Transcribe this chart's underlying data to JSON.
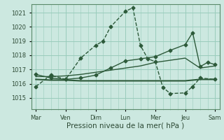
{
  "background_color": "#cce8e0",
  "grid_color": "#99ccbb",
  "line_color": "#2d5a3a",
  "x_major_labels": [
    "Mar",
    "Ven",
    "Dim",
    "Lun",
    "Mer",
    "Jeu",
    "Sam"
  ],
  "x_major_pos": [
    0,
    1,
    2,
    3,
    4,
    5,
    6
  ],
  "ylim": [
    1014.2,
    1021.6
  ],
  "yticks": [
    1015,
    1016,
    1017,
    1018,
    1019,
    1020,
    1021
  ],
  "xlabel": "Pression niveau de la mer( hPa )",
  "series": [
    {
      "x": [
        0.0,
        0.5,
        1.0,
        1.5,
        2.0,
        2.25,
        2.5,
        3.0,
        3.25,
        3.5,
        3.75,
        4.0,
        4.25,
        4.5,
        5.0,
        5.25,
        5.5,
        6.0
      ],
      "y": [
        1015.8,
        1016.6,
        1016.3,
        1017.8,
        1018.7,
        1019.0,
        1020.0,
        1021.1,
        1021.35,
        1018.7,
        1017.75,
        1017.55,
        1015.75,
        1015.3,
        1015.35,
        1015.8,
        1016.4,
        1016.3
      ],
      "linewidth": 1.0,
      "markersize": 2.5,
      "marker": "D",
      "linestyle": "--"
    },
    {
      "x": [
        0.0,
        0.5,
        1.0,
        1.5,
        2.0,
        2.5,
        3.0,
        3.5,
        4.0,
        4.5,
        5.0,
        5.5,
        6.0
      ],
      "y": [
        1016.3,
        1016.25,
        1016.25,
        1016.2,
        1016.2,
        1016.2,
        1016.2,
        1016.2,
        1016.2,
        1016.2,
        1016.2,
        1016.3,
        1016.3
      ],
      "linewidth": 1.5,
      "markersize": 0,
      "marker": "",
      "linestyle": "-"
    },
    {
      "x": [
        0.0,
        0.5,
        1.0,
        1.5,
        2.0,
        2.5,
        3.0,
        3.5,
        4.0,
        4.5,
        5.0,
        5.5,
        6.0
      ],
      "y": [
        1016.5,
        1016.5,
        1016.55,
        1016.65,
        1016.8,
        1016.95,
        1017.1,
        1017.25,
        1017.5,
        1017.65,
        1017.8,
        1017.1,
        1017.25
      ],
      "linewidth": 1.0,
      "markersize": 0,
      "marker": "",
      "linestyle": "-"
    },
    {
      "x": [
        0.0,
        0.5,
        1.0,
        1.5,
        2.0,
        2.5,
        3.0,
        3.5,
        4.0,
        4.5,
        5.0,
        5.25,
        5.5,
        5.75,
        6.0
      ],
      "y": [
        1016.65,
        1016.4,
        1016.3,
        1016.4,
        1016.6,
        1017.1,
        1017.6,
        1017.75,
        1017.9,
        1018.35,
        1018.75,
        1019.6,
        1017.2,
        1017.5,
        1017.35
      ],
      "linewidth": 1.0,
      "markersize": 2.5,
      "marker": "D",
      "linestyle": "-"
    }
  ],
  "tick_fontsize": 6.0,
  "xlabel_fontsize": 7.5
}
